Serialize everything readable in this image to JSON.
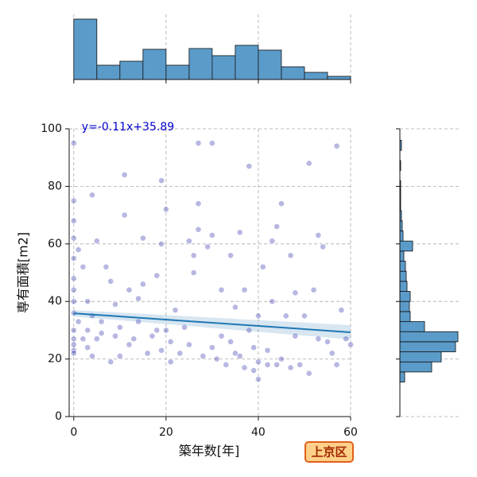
{
  "chart_data": [
    {
      "type": "scatter",
      "x_label": "築年数[年]",
      "y_label": "専有面積[m2]",
      "xlim": [
        -1,
        60
      ],
      "ylim": [
        0,
        100
      ],
      "xticks": [
        0,
        20,
        40,
        60
      ],
      "yticks": [
        0,
        20,
        40,
        60,
        80,
        100
      ],
      "grid": true,
      "color": "#1010a0",
      "x": [
        0,
        0,
        0,
        0,
        0,
        0,
        0,
        0,
        0,
        0,
        0,
        0,
        0,
        0,
        1,
        1,
        2,
        2,
        3,
        3,
        4,
        4,
        5,
        5,
        6,
        6,
        7,
        8,
        8,
        9,
        10,
        10,
        11,
        11,
        12,
        12,
        13,
        14,
        15,
        15,
        16,
        17,
        18,
        19,
        19,
        19,
        20,
        20,
        21,
        21,
        22,
        23,
        24,
        25,
        26,
        26,
        27,
        27,
        28,
        29,
        30,
        30,
        30,
        31,
        32,
        32,
        33,
        34,
        34,
        35,
        35,
        36,
        36,
        37,
        38,
        38,
        39,
        39,
        40,
        40,
        40,
        41,
        42,
        42,
        43,
        44,
        44,
        45,
        45,
        46,
        47,
        47,
        48,
        48,
        49,
        50,
        51,
        51,
        52,
        53,
        54,
        55,
        56,
        57,
        57,
        58,
        59,
        60,
        53,
        25,
        27,
        14,
        9,
        4,
        3,
        18,
        37,
        43
      ],
      "y": [
        95,
        75,
        68,
        62,
        55,
        48,
        44,
        40,
        36,
        30,
        27,
        25,
        23,
        22,
        33,
        58,
        52,
        27,
        24,
        30,
        21,
        77,
        61,
        27,
        29,
        33,
        52,
        19,
        47,
        28,
        31,
        21,
        84,
        70,
        44,
        25,
        27,
        33,
        46,
        62,
        22,
        28,
        30,
        82,
        60,
        23,
        30,
        72,
        19,
        26,
        37,
        22,
        31,
        25,
        50,
        56,
        95,
        65,
        21,
        59,
        63,
        95,
        24,
        20,
        28,
        44,
        18,
        56,
        26,
        38,
        22,
        21,
        64,
        17,
        87,
        30,
        24,
        16,
        13,
        19,
        35,
        52,
        23,
        18,
        40,
        18,
        66,
        74,
        20,
        35,
        56,
        17,
        43,
        28,
        18,
        35,
        88,
        15,
        44,
        27,
        59,
        26,
        22,
        94,
        18,
        37,
        27,
        25,
        63,
        61,
        74,
        41,
        39,
        35,
        40,
        49,
        44,
        61
      ],
      "regression": {
        "label": "y=-0.11x+35.89",
        "slope": -0.11,
        "intercept": 35.89,
        "color": "#1f77b4"
      }
    },
    {
      "type": "histogram",
      "orientation": "vertical",
      "color": "#5b9bc9",
      "bins": [
        0,
        5,
        10,
        15,
        20,
        25,
        30,
        35,
        40,
        45,
        50,
        55,
        60
      ],
      "counts": [
        152,
        36,
        46,
        76,
        36,
        78,
        60,
        86,
        74,
        32,
        18,
        8
      ]
    },
    {
      "type": "histogram",
      "orientation": "horizontal",
      "color": "#5b9bc9",
      "bins": [
        12,
        15.5,
        19,
        22.5,
        26,
        29.5,
        33,
        36.5,
        40,
        43.5,
        47,
        50.5,
        54,
        57.5,
        61,
        64.5,
        68,
        71.5,
        75,
        78.5,
        82,
        85.5,
        89,
        92.5,
        96
      ],
      "counts": [
        6,
        40,
        52,
        70,
        73,
        31,
        13,
        12,
        13,
        9,
        8,
        7,
        5,
        16,
        4,
        3,
        2,
        1,
        1,
        1,
        0,
        1,
        0,
        2
      ]
    }
  ],
  "badge": "上京区"
}
